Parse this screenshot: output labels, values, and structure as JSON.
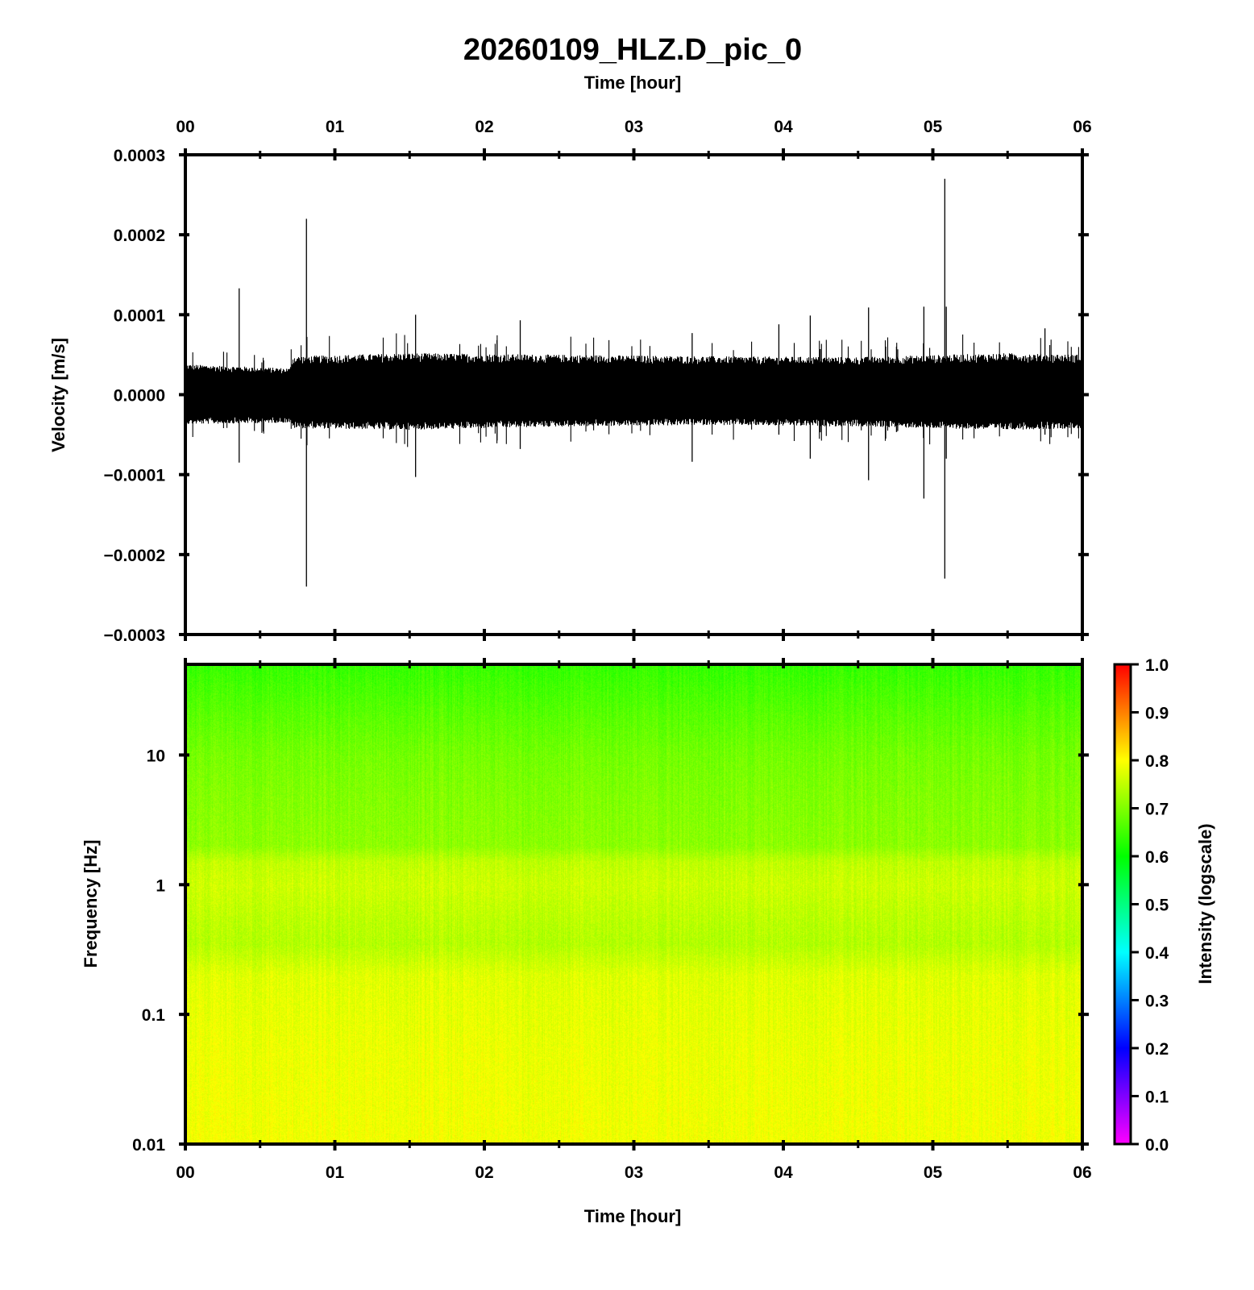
{
  "figure": {
    "title": "20260109_HLZ.D_pic_0",
    "top_axis_label": "Time [hour]",
    "bottom_axis_label": "Time [hour]"
  },
  "chart_data": [
    {
      "type": "line",
      "name": "waveform",
      "ylabel": "Velocity [m/s]",
      "xlabel": "Time [hour]",
      "x_tick_labels": [
        "00",
        "01",
        "02",
        "03",
        "04",
        "05",
        "06"
      ],
      "x_tick_values": [
        0,
        1,
        2,
        3,
        4,
        5,
        6
      ],
      "xlim": [
        0,
        6
      ],
      "y_tick_labels": [
        "0.0003",
        "0.0002",
        "0.0001",
        "0.0000",
        "−0.0001",
        "−0.0002",
        "−0.0003"
      ],
      "y_tick_values": [
        0.0003,
        0.0002,
        0.0001,
        0.0,
        -0.0001,
        -0.0002,
        -0.0003
      ],
      "ylim": [
        -0.0003,
        0.0003
      ],
      "noise_envelope": {
        "x": [
          0,
          0.7,
          0.72,
          1.5,
          2.5,
          3.5,
          4.5,
          5.5,
          6.0
        ],
        "upper": [
          3.8e-05,
          3.3e-05,
          4.8e-05,
          5.2e-05,
          5e-05,
          4.8e-05,
          4.7e-05,
          5.2e-05,
          5e-05
        ],
        "lower": [
          -3.7e-05,
          -3.5e-05,
          -4.2e-05,
          -4.4e-05,
          -4e-05,
          -3.8e-05,
          -4e-05,
          -4.4e-05,
          -4.2e-05
        ]
      },
      "spikes": [
        {
          "x": 0.36,
          "max": 0.000133,
          "min": -8.5e-05
        },
        {
          "x": 0.81,
          "max": 0.00022,
          "min": -0.00024
        },
        {
          "x": 1.54,
          "max": 0.0001,
          "min": -0.000103
        },
        {
          "x": 2.24,
          "max": 9.3e-05,
          "min": -6.8e-05
        },
        {
          "x": 3.39,
          "max": 7.7e-05,
          "min": -8.4e-05
        },
        {
          "x": 3.97,
          "max": 8.8e-05,
          "min": -5e-05
        },
        {
          "x": 4.18,
          "max": 9.9e-05,
          "min": -8e-05
        },
        {
          "x": 4.57,
          "max": 0.000109,
          "min": -0.000107
        },
        {
          "x": 4.94,
          "max": 0.00011,
          "min": -0.00013
        },
        {
          "x": 5.08,
          "max": 0.00027,
          "min": -0.00023
        },
        {
          "x": 5.09,
          "max": 0.00011,
          "min": -8e-05
        },
        {
          "x": 5.75,
          "max": 8.3e-05,
          "min": -5e-05
        }
      ]
    },
    {
      "type": "heatmap",
      "name": "spectrogram",
      "ylabel": "Frequency [Hz]",
      "xlabel": "Time [hour]",
      "yscale": "log",
      "ylim": [
        0.01,
        50
      ],
      "xlim": [
        0,
        6
      ],
      "y_tick_labels": [
        "10",
        "1",
        "0.1",
        "0.01"
      ],
      "y_tick_values": [
        10,
        1,
        0.1,
        0.01
      ],
      "x_tick_labels": [
        "00",
        "01",
        "02",
        "03",
        "04",
        "05",
        "06"
      ],
      "x_tick_values": [
        0,
        1,
        2,
        3,
        4,
        5,
        6
      ],
      "intensity_profile": {
        "freq": [
          50,
          20,
          10,
          5,
          2,
          1.5,
          1,
          0.5,
          0.35,
          0.2,
          0.1,
          0.05,
          0.01
        ],
        "intensity": [
          0.64,
          0.67,
          0.69,
          0.7,
          0.71,
          0.75,
          0.76,
          0.745,
          0.74,
          0.775,
          0.78,
          0.785,
          0.79
        ]
      },
      "colorbar": {
        "label": "Intensity (logscale)",
        "range": [
          0.0,
          1.0
        ],
        "tick_labels": [
          "1.0",
          "0.9",
          "0.8",
          "0.7",
          "0.6",
          "0.5",
          "0.4",
          "0.3",
          "0.2",
          "0.1",
          "0.0"
        ],
        "tick_values": [
          1.0,
          0.9,
          0.8,
          0.7,
          0.6,
          0.5,
          0.4,
          0.3,
          0.2,
          0.1,
          0.0
        ],
        "colors": [
          "#ff00ff",
          "#8000ff",
          "#0000ff",
          "#0080ff",
          "#00ffff",
          "#00ff80",
          "#00ff00",
          "#80ff00",
          "#ffff00",
          "#ff8000",
          "#ff0000"
        ]
      }
    }
  ]
}
